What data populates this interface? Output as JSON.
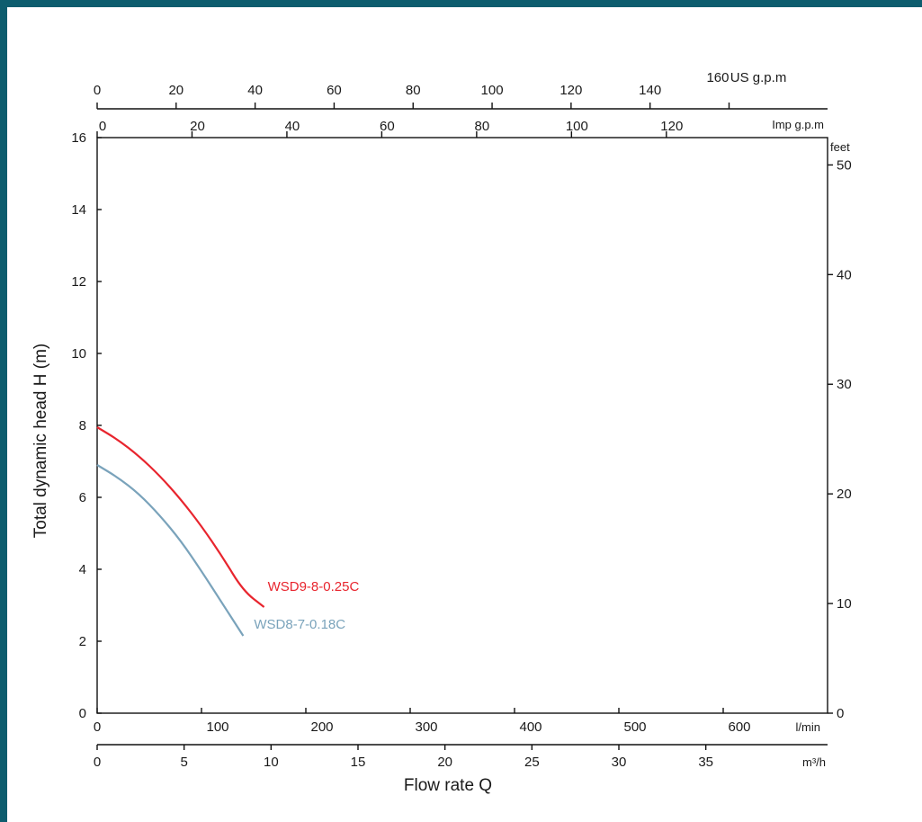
{
  "chart_data": {
    "type": "line",
    "ylabel": "Total dynamic head H (m)",
    "xlabel": "Flow rate Q",
    "x_unit": "l/min",
    "xlim": [
      0,
      700
    ],
    "ylim": [
      0,
      16
    ],
    "x_ticks": [
      "0",
      "100",
      "200",
      "300",
      "400",
      "500",
      "600"
    ],
    "y_ticks": [
      "0",
      "2",
      "4",
      "6",
      "8",
      "10",
      "12",
      "14",
      "16"
    ],
    "secondary_axes": {
      "us_gpm": {
        "unit": "US g.p.m",
        "ticks": [
          "0",
          "20",
          "40",
          "60",
          "80",
          "100",
          "120",
          "140",
          "160"
        ]
      },
      "imp_gpm": {
        "unit": "Imp g.p.m",
        "ticks": [
          "0",
          "20",
          "40",
          "60",
          "80",
          "100",
          "120"
        ]
      },
      "feet": {
        "unit": "feet",
        "ticks": [
          "0",
          "10",
          "20",
          "30",
          "40",
          "50"
        ]
      },
      "m3h": {
        "unit": "m³/h",
        "ticks": [
          "0",
          "5",
          "10",
          "15",
          "20",
          "25",
          "30",
          "35"
        ]
      }
    },
    "grid": false,
    "series": [
      {
        "name": "WSD9-8-0.25C",
        "color": "#e8252e",
        "x": [
          0,
          20,
          40,
          60,
          80,
          100,
          120,
          140,
          160
        ],
        "y": [
          7.95,
          7.6,
          7.15,
          6.6,
          5.95,
          5.2,
          4.35,
          3.4,
          2.95
        ]
      },
      {
        "name": "WSD8-7-0.18C",
        "color": "#7aa3bb",
        "x": [
          0,
          20,
          40,
          60,
          80,
          100,
          120,
          140
        ],
        "y": [
          6.9,
          6.55,
          6.1,
          5.5,
          4.8,
          3.95,
          3.05,
          2.15
        ]
      }
    ]
  }
}
